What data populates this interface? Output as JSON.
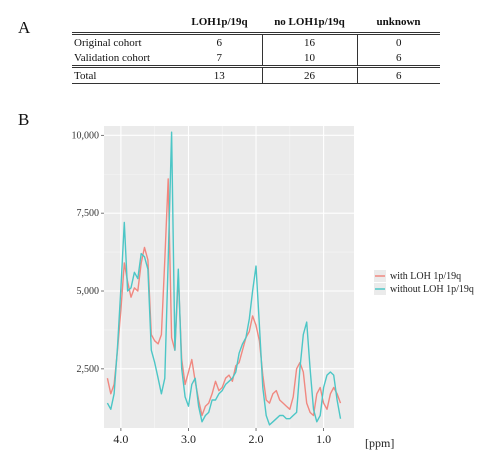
{
  "panel_a": {
    "label": "A",
    "table": {
      "columns": [
        "",
        "LOH1p/19q",
        "no LOH1p/19q",
        "unknown"
      ],
      "rows": [
        {
          "cells": [
            "Original cohort",
            "6",
            "16",
            "0"
          ]
        },
        {
          "cells": [
            "Validation cohort",
            "7",
            "10",
            "6"
          ]
        },
        {
          "cells": [
            "Total",
            "13",
            "26",
            "6"
          ],
          "is_total": true
        }
      ]
    }
  },
  "panel_b": {
    "label": "B"
  },
  "chart_data": {
    "type": "line",
    "title": "",
    "xlabel": "[ppm]",
    "ylabel": "",
    "x_reversed": true,
    "xlim": [
      4.25,
      0.55
    ],
    "ylim": [
      600,
      10300
    ],
    "x_ticks": [
      4.0,
      3.0,
      2.0,
      1.0
    ],
    "x_tick_labels": [
      "4.0",
      "3.0",
      "2.0",
      "1.0"
    ],
    "y_ticks": [
      2500,
      5000,
      7500,
      10000
    ],
    "y_tick_labels": [
      "2,500",
      "5,000",
      "7,500",
      "10,000"
    ],
    "grid": true,
    "legend_position": "right",
    "series": [
      {
        "name": "with LOH 1p/19q",
        "color": "#f08880",
        "x": [
          4.2,
          4.15,
          4.1,
          4.05,
          4.0,
          3.95,
          3.9,
          3.85,
          3.8,
          3.75,
          3.7,
          3.65,
          3.6,
          3.55,
          3.5,
          3.45,
          3.4,
          3.35,
          3.3,
          3.25,
          3.2,
          3.15,
          3.1,
          3.05,
          3.0,
          2.95,
          2.9,
          2.85,
          2.8,
          2.75,
          2.7,
          2.65,
          2.6,
          2.55,
          2.5,
          2.45,
          2.4,
          2.35,
          2.3,
          2.25,
          2.2,
          2.15,
          2.1,
          2.05,
          2.0,
          1.95,
          1.9,
          1.85,
          1.8,
          1.75,
          1.7,
          1.65,
          1.6,
          1.55,
          1.5,
          1.45,
          1.4,
          1.35,
          1.3,
          1.25,
          1.2,
          1.15,
          1.1,
          1.05,
          1.0,
          0.95,
          0.9,
          0.85,
          0.8,
          0.75
        ],
        "y": [
          2200,
          1700,
          2000,
          3100,
          4400,
          5900,
          5300,
          4800,
          5100,
          5000,
          5900,
          6400,
          6000,
          3600,
          3400,
          3300,
          3600,
          6000,
          8600,
          3500,
          3100,
          5500,
          2800,
          2000,
          2400,
          2800,
          2100,
          1500,
          1000,
          1300,
          1400,
          1700,
          2100,
          1800,
          1900,
          2200,
          2300,
          2100,
          2600,
          2700,
          3100,
          3500,
          3700,
          4200,
          3900,
          3400,
          2300,
          1500,
          1400,
          1700,
          1800,
          1500,
          1400,
          1300,
          1200,
          1600,
          2500,
          2700,
          2400,
          1400,
          1100,
          1000,
          1700,
          1900,
          1400,
          1200,
          1700,
          1900,
          1700,
          1400
        ]
      },
      {
        "name": "without LOH 1p/19q",
        "color": "#4cc6c6",
        "x": [
          4.2,
          4.15,
          4.1,
          4.05,
          4.0,
          3.95,
          3.9,
          3.85,
          3.8,
          3.75,
          3.7,
          3.65,
          3.6,
          3.55,
          3.5,
          3.45,
          3.4,
          3.35,
          3.3,
          3.25,
          3.2,
          3.15,
          3.1,
          3.05,
          3.0,
          2.95,
          2.9,
          2.85,
          2.8,
          2.75,
          2.7,
          2.65,
          2.6,
          2.55,
          2.5,
          2.45,
          2.4,
          2.35,
          2.3,
          2.25,
          2.2,
          2.15,
          2.1,
          2.05,
          2.0,
          1.95,
          1.9,
          1.85,
          1.8,
          1.75,
          1.7,
          1.65,
          1.6,
          1.55,
          1.5,
          1.45,
          1.4,
          1.35,
          1.3,
          1.25,
          1.2,
          1.15,
          1.1,
          1.05,
          1.0,
          0.95,
          0.9,
          0.85,
          0.8,
          0.75
        ],
        "y": [
          1400,
          1200,
          1700,
          3200,
          5100,
          7200,
          5000,
          5100,
          5600,
          5400,
          6200,
          6100,
          5700,
          3100,
          2700,
          2200,
          1700,
          2200,
          6000,
          10100,
          3100,
          5700,
          2500,
          1600,
          1300,
          2000,
          2200,
          1300,
          800,
          1000,
          1100,
          1500,
          1500,
          1700,
          1800,
          2000,
          2100,
          2200,
          2400,
          3000,
          3300,
          3500,
          4100,
          5000,
          5800,
          3900,
          1900,
          1000,
          700,
          800,
          900,
          1000,
          1000,
          900,
          900,
          1000,
          1100,
          2500,
          3600,
          4000,
          2500,
          1200,
          800,
          1000,
          1900,
          2300,
          2400,
          2300,
          1500,
          900
        ]
      }
    ]
  }
}
